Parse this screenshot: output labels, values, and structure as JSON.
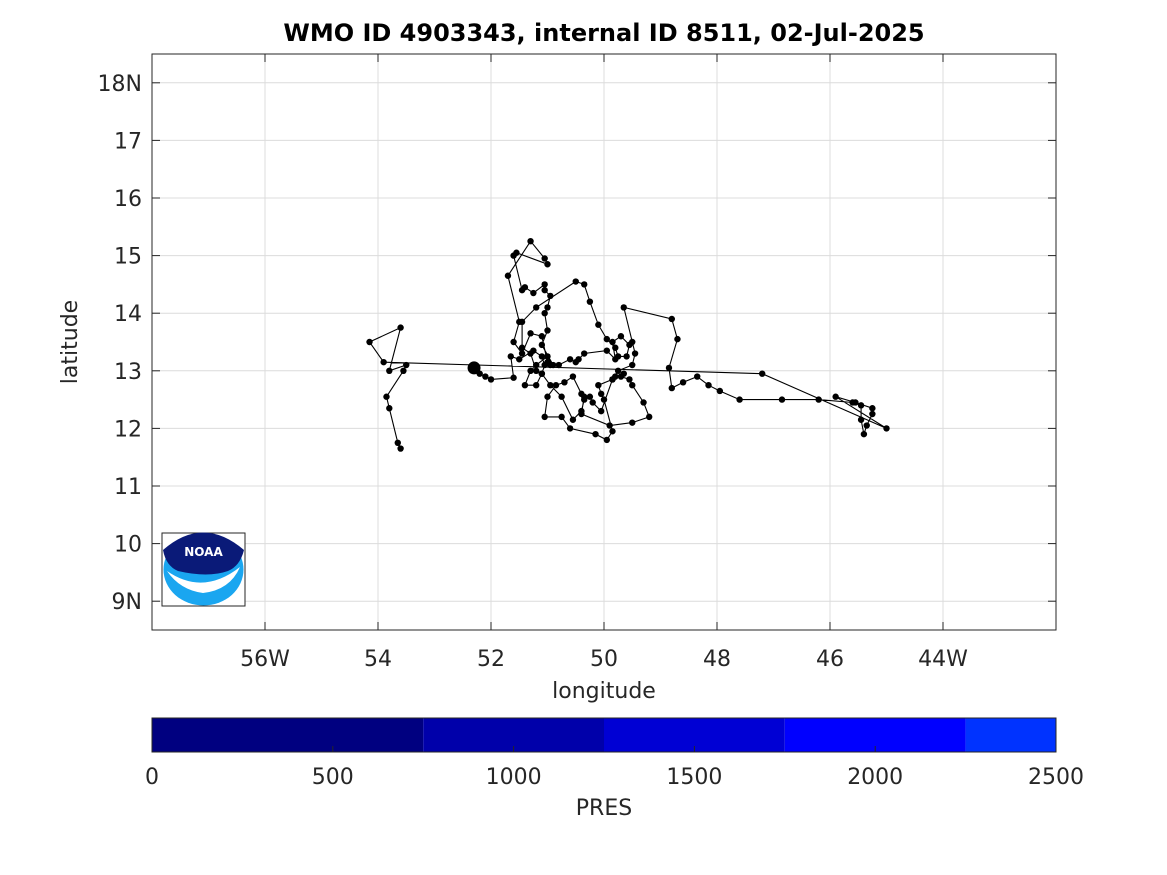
{
  "chart_data": {
    "type": "scatter",
    "title": "WMO ID 4903343, internal ID 8511, 02-Jul-2025",
    "xlabel": "longitude",
    "ylabel": "latitude",
    "xlim": [
      -58,
      -42
    ],
    "ylim": [
      8.5,
      18.5
    ],
    "grid": true,
    "x_ticks": [
      -56,
      -54,
      -52,
      -50,
      -48,
      -46,
      -44
    ],
    "x_tick_labels": [
      "56W",
      "54",
      "52",
      "50",
      "48",
      "46",
      "44W"
    ],
    "y_ticks": [
      9,
      10,
      11,
      12,
      13,
      14,
      15,
      16,
      17,
      18
    ],
    "y_tick_labels": [
      "9N",
      "10",
      "11",
      "12",
      "13",
      "14",
      "15",
      "16",
      "17",
      "18N"
    ],
    "start_point": [
      -52.3,
      13.05
    ],
    "series": [
      {
        "values": [
          [
            -52.3,
            13.05
          ],
          [
            -52.2,
            12.95
          ],
          [
            -52.1,
            12.9
          ],
          [
            -52.0,
            12.85
          ],
          [
            -51.6,
            12.88
          ],
          [
            -51.65,
            13.25
          ],
          [
            -51.5,
            13.2
          ],
          [
            -51.25,
            13.35
          ],
          [
            -51.1,
            13.25
          ],
          [
            -51.05,
            13.1
          ],
          [
            -51.1,
            12.95
          ],
          [
            -51.2,
            12.75
          ],
          [
            -51.4,
            12.75
          ],
          [
            -51.3,
            13.0
          ],
          [
            -51.2,
            13.1
          ],
          [
            -51.0,
            13.25
          ],
          [
            -50.9,
            13.1
          ],
          [
            -51.1,
            13.45
          ],
          [
            -51.0,
            13.7
          ],
          [
            -51.05,
            14.0
          ],
          [
            -51.0,
            14.1
          ],
          [
            -50.95,
            14.3
          ],
          [
            -51.05,
            14.4
          ],
          [
            -51.05,
            14.5
          ],
          [
            -51.25,
            14.35
          ],
          [
            -51.4,
            14.45
          ],
          [
            -51.45,
            14.4
          ],
          [
            -51.6,
            15.0
          ],
          [
            -51.55,
            15.05
          ],
          [
            -51.0,
            14.85
          ],
          [
            -51.05,
            14.95
          ],
          [
            -51.3,
            15.25
          ],
          [
            -51.7,
            14.65
          ],
          [
            -51.5,
            13.85
          ],
          [
            -51.6,
            13.5
          ],
          [
            -51.45,
            13.3
          ],
          [
            -51.3,
            13.65
          ],
          [
            -51.1,
            13.6
          ],
          [
            -51.0,
            13.15
          ],
          [
            -50.95,
            13.1
          ],
          [
            -50.8,
            13.1
          ],
          [
            -50.6,
            13.2
          ],
          [
            -50.5,
            13.15
          ],
          [
            -50.45,
            13.2
          ],
          [
            -50.35,
            13.3
          ],
          [
            -49.95,
            13.35
          ],
          [
            -49.8,
            13.2
          ],
          [
            -49.85,
            13.5
          ],
          [
            -49.7,
            13.6
          ],
          [
            -49.55,
            13.45
          ],
          [
            -49.6,
            13.25
          ],
          [
            -49.75,
            13.25
          ],
          [
            -49.8,
            13.4
          ],
          [
            -49.95,
            13.55
          ],
          [
            -50.1,
            13.8
          ],
          [
            -50.25,
            14.2
          ],
          [
            -50.35,
            14.5
          ],
          [
            -50.5,
            14.55
          ],
          [
            -51.2,
            14.1
          ],
          [
            -51.45,
            13.85
          ],
          [
            -51.45,
            13.4
          ],
          [
            -51.3,
            13.3
          ],
          [
            -51.2,
            13.0
          ],
          [
            -51.1,
            12.95
          ],
          [
            -50.95,
            12.75
          ],
          [
            -50.75,
            12.55
          ],
          [
            -50.55,
            12.15
          ],
          [
            -50.4,
            12.3
          ],
          [
            -50.35,
            12.5
          ],
          [
            -50.25,
            12.55
          ],
          [
            -50.2,
            12.45
          ],
          [
            -50.05,
            12.3
          ],
          [
            -49.85,
            12.85
          ],
          [
            -49.65,
            12.95
          ],
          [
            -49.8,
            12.9
          ],
          [
            -49.7,
            12.9
          ],
          [
            -49.55,
            12.85
          ],
          [
            -49.5,
            12.75
          ],
          [
            -49.3,
            12.45
          ],
          [
            -49.2,
            12.2
          ],
          [
            -49.5,
            12.1
          ],
          [
            -49.9,
            12.05
          ],
          [
            -50.4,
            12.25
          ],
          [
            -50.35,
            12.55
          ],
          [
            -50.4,
            12.6
          ],
          [
            -50.55,
            12.9
          ],
          [
            -50.7,
            12.8
          ],
          [
            -50.85,
            12.75
          ],
          [
            -51.0,
            12.55
          ],
          [
            -51.05,
            12.2
          ],
          [
            -50.75,
            12.2
          ],
          [
            -50.6,
            12.0
          ],
          [
            -50.15,
            11.9
          ],
          [
            -49.95,
            11.8
          ],
          [
            -49.85,
            11.95
          ],
          [
            -50.0,
            12.5
          ],
          [
            -50.05,
            12.6
          ],
          [
            -50.1,
            12.75
          ],
          [
            -49.85,
            12.85
          ],
          [
            -49.75,
            13.0
          ],
          [
            -49.5,
            13.1
          ],
          [
            -49.45,
            13.3
          ],
          [
            -49.5,
            13.5
          ],
          [
            -49.65,
            14.1
          ],
          [
            -48.8,
            13.9
          ],
          [
            -48.7,
            13.55
          ],
          [
            -48.85,
            13.05
          ],
          [
            -48.8,
            12.7
          ],
          [
            -48.6,
            12.8
          ],
          [
            -48.35,
            12.9
          ],
          [
            -48.15,
            12.75
          ],
          [
            -47.95,
            12.65
          ],
          [
            -47.6,
            12.5
          ],
          [
            -46.85,
            12.5
          ],
          [
            -46.2,
            12.5
          ],
          [
            -45.6,
            12.45
          ],
          [
            -45.45,
            12.4
          ],
          [
            -45.45,
            12.15
          ],
          [
            -45.4,
            11.9
          ],
          [
            -45.35,
            12.05
          ],
          [
            -45.25,
            12.25
          ],
          [
            -45.25,
            12.35
          ],
          [
            -45.55,
            12.45
          ],
          [
            -45.9,
            12.55
          ],
          [
            -45.0,
            12.0
          ],
          [
            -47.2,
            12.95
          ],
          [
            -53.9,
            13.15
          ],
          [
            -54.15,
            13.5
          ],
          [
            -53.6,
            13.75
          ],
          [
            -53.8,
            13.0
          ],
          [
            -53.5,
            13.1
          ],
          [
            -53.55,
            13.0
          ],
          [
            -53.85,
            12.55
          ],
          [
            -53.8,
            12.35
          ],
          [
            -53.65,
            11.75
          ],
          [
            -53.6,
            11.65
          ]
        ]
      }
    ]
  },
  "logo": {
    "text": "NOAA",
    "colors": {
      "dark": "#0a1a78",
      "light": "#1aa6f0",
      "white": "#ffffff"
    }
  },
  "colorbar": {
    "label": "PRES",
    "ticks": [
      0,
      500,
      1000,
      1500,
      2000,
      2500
    ],
    "tick_labels": [
      "0",
      "500",
      "1000",
      "1500",
      "2000",
      "2500"
    ],
    "segments": [
      {
        "from": 0,
        "to": 750,
        "color": "#000080"
      },
      {
        "from": 750,
        "to": 1250,
        "color": "#0000aa"
      },
      {
        "from": 1250,
        "to": 1750,
        "color": "#0000d4"
      },
      {
        "from": 1750,
        "to": 2250,
        "color": "#0000ff"
      },
      {
        "from": 2250,
        "to": 2500,
        "color": "#0033ff"
      }
    ]
  }
}
